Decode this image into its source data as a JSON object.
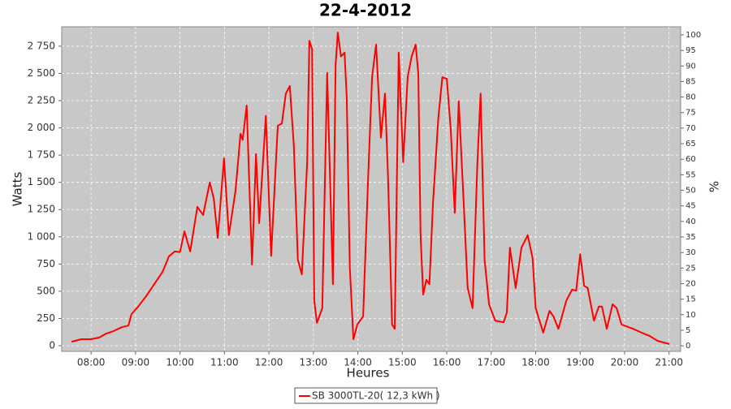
{
  "chart_data": {
    "type": "line",
    "title": "22-4-2012",
    "xlabel": "Heures",
    "ylabel": "Watts",
    "y2label": "%",
    "x": [
      7.56,
      7.78,
      8.0,
      8.18,
      8.33,
      8.51,
      8.69,
      8.84,
      8.91,
      9.06,
      9.24,
      9.42,
      9.61,
      9.75,
      9.88,
      10.0,
      10.1,
      10.23,
      10.39,
      10.52,
      10.67,
      10.76,
      10.85,
      10.99,
      11.1,
      11.25,
      11.36,
      11.41,
      11.5,
      11.62,
      11.71,
      11.78,
      11.93,
      12.05,
      12.2,
      12.29,
      12.38,
      12.47,
      12.56,
      12.65,
      12.74,
      12.86,
      12.91,
      12.97,
      13.02,
      13.08,
      13.2,
      13.31,
      13.37,
      13.44,
      13.5,
      13.55,
      13.62,
      13.7,
      13.75,
      13.82,
      13.9,
      13.99,
      14.12,
      14.23,
      14.32,
      14.41,
      14.52,
      14.61,
      14.68,
      14.77,
      14.83,
      14.92,
      15.02,
      15.12,
      15.21,
      15.3,
      15.36,
      15.41,
      15.47,
      15.54,
      15.61,
      15.69,
      15.81,
      15.9,
      16.0,
      16.09,
      16.18,
      16.27,
      16.38,
      16.47,
      16.58,
      16.69,
      16.76,
      16.85,
      16.95,
      17.09,
      17.28,
      17.35,
      17.42,
      17.55,
      17.68,
      17.82,
      17.93,
      18.0,
      18.17,
      18.31,
      18.4,
      18.51,
      18.69,
      18.82,
      18.91,
      19.0,
      19.09,
      19.17,
      19.31,
      19.42,
      19.49,
      19.6,
      19.73,
      19.82,
      19.93,
      20.19,
      20.38,
      20.56,
      20.74,
      21.01
    ],
    "series": [
      {
        "name": "SB 3000TL-20( 12,3 kWh )",
        "color": "#ff0000",
        "values": [
          37,
          60,
          60,
          75,
          110,
          135,
          170,
          185,
          290,
          360,
          455,
          565,
          680,
          820,
          865,
          860,
          1050,
          865,
          1275,
          1200,
          1500,
          1350,
          990,
          1720,
          1015,
          1425,
          1945,
          1890,
          2205,
          745,
          1760,
          1125,
          2110,
          825,
          2020,
          2040,
          2315,
          2385,
          1835,
          790,
          655,
          1685,
          2800,
          2725,
          415,
          210,
          345,
          2505,
          1610,
          565,
          2580,
          2875,
          2655,
          2690,
          2280,
          715,
          60,
          195,
          270,
          1535,
          2465,
          2765,
          1910,
          2315,
          1535,
          195,
          155,
          2690,
          1685,
          2465,
          2655,
          2765,
          2505,
          1015,
          470,
          605,
          565,
          1310,
          2095,
          2465,
          2450,
          1980,
          1220,
          2245,
          1310,
          530,
          345,
          1685,
          2315,
          790,
          380,
          230,
          215,
          305,
          900,
          530,
          900,
          1015,
          805,
          345,
          120,
          320,
          270,
          155,
          415,
          515,
          505,
          840,
          550,
          530,
          230,
          360,
          360,
          155,
          380,
          345,
          195,
          155,
          120,
          90,
          45,
          15
        ]
      }
    ],
    "xlim": [
      7.34,
      21.26
    ],
    "xticks": [
      {
        "value": 8,
        "label": "08:00"
      },
      {
        "value": 9,
        "label": "09:00"
      },
      {
        "value": 10,
        "label": "10:00"
      },
      {
        "value": 11,
        "label": "11:00"
      },
      {
        "value": 12,
        "label": "12:00"
      },
      {
        "value": 13,
        "label": "13:00"
      },
      {
        "value": 14,
        "label": "14:00"
      },
      {
        "value": 15,
        "label": "15:00"
      },
      {
        "value": 16,
        "label": "16:00"
      },
      {
        "value": 17,
        "label": "17:00"
      },
      {
        "value": 18,
        "label": "18:00"
      },
      {
        "value": 19,
        "label": "19:00"
      },
      {
        "value": 20,
        "label": "20:00"
      },
      {
        "value": 21,
        "label": "21:00"
      }
    ],
    "ylim": [
      -52,
      2928
    ],
    "yticks": [
      0,
      250,
      500,
      750,
      {
        "value": 1000,
        "label": "1 000"
      },
      {
        "value": 1250,
        "label": "1 250"
      },
      {
        "value": 1500,
        "label": "1 500"
      },
      {
        "value": 1750,
        "label": "1 750"
      },
      {
        "value": 2000,
        "label": "2 000"
      },
      {
        "value": 2250,
        "label": "2 250"
      },
      {
        "value": 2500,
        "label": "2 500"
      },
      {
        "value": 2750,
        "label": "2 750"
      }
    ],
    "y2lim": [
      -1.8,
      102.6
    ],
    "y2ticks": [
      0,
      5,
      10,
      15,
      20,
      25,
      30,
      35,
      40,
      45,
      50,
      55,
      60,
      65,
      70,
      75,
      80,
      85,
      90,
      95,
      100
    ],
    "grid": true
  }
}
